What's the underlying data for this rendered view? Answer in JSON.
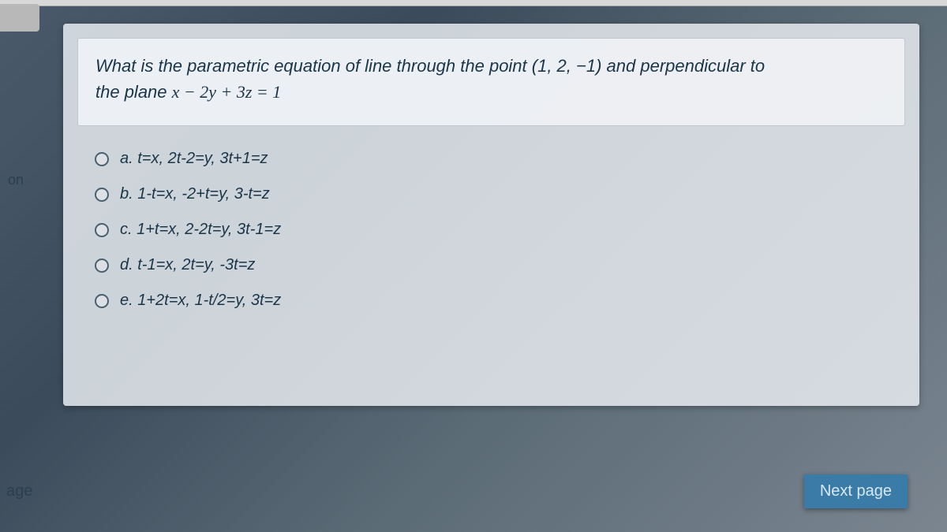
{
  "colors": {
    "background_gradient_start": "#4a5a6a",
    "background_gradient_end": "#7a8590",
    "card_bg": "rgba(230,235,240,0.85)",
    "question_box_bg": "rgba(240,242,245,0.9)",
    "text_color": "#1a3548",
    "radio_border": "#4a6070",
    "button_bg": "#3a7ba8",
    "button_text": "#d8e8f0"
  },
  "typography": {
    "question_fontsize": 22,
    "option_fontsize": 20,
    "font_family": "Comic Sans MS"
  },
  "side_labels": {
    "top": "on",
    "bottom": "age"
  },
  "question": {
    "line1": "What is the parametric equation of line through the point (1, 2, −1) and perpendicular to",
    "line2_prefix": "the plane ",
    "line2_math": "x − 2y + 3z = 1"
  },
  "options": [
    {
      "letter": "a.",
      "text": "t=x,  2t-2=y,   3t+1=z"
    },
    {
      "letter": "b.",
      "text": "1-t=x,  -2+t=y,  3-t=z"
    },
    {
      "letter": "c.",
      "text": "1+t=x,  2-2t=y,   3t-1=z"
    },
    {
      "letter": "d.",
      "text": "t-1=x,  2t=y,   -3t=z"
    },
    {
      "letter": "e.",
      "text": "1+2t=x,  1-t/2=y,   3t=z"
    }
  ],
  "button": {
    "next_label": "Next page"
  }
}
